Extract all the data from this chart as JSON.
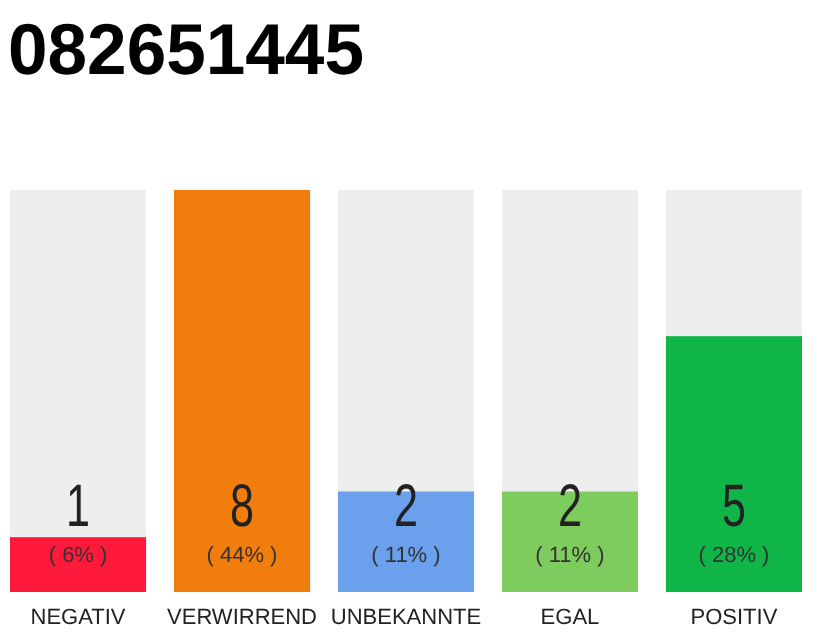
{
  "chart_data": {
    "type": "bar",
    "title": "082651445",
    "categories": [
      "NEGATIV",
      "VERWIRREND",
      "UNBEKANNTE",
      "EGAL",
      "POSITIV"
    ],
    "values": [
      6,
      44,
      11,
      11,
      28
    ],
    "colors": [
      "#ff1a3c",
      "#f07d0c",
      "#6aa0ec",
      "#7ecb5e",
      "#10b548"
    ],
    "value_labels": [
      "( 6% )",
      "( 44% )",
      "( 11% )",
      "( 11% )",
      "( 28% )"
    ],
    "annotations": [
      "1",
      "8",
      "2",
      "2",
      "5"
    ]
  }
}
